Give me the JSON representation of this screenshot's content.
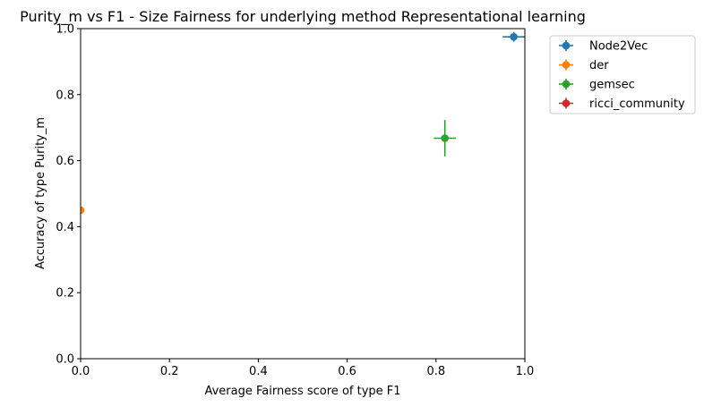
{
  "chart_data": {
    "type": "scatter",
    "title": "Purity_m vs F1 - Size Fairness for underlying method Representational learning",
    "xlabel": "Average Fairness score of type F1",
    "ylabel": "Accuracy of type Purity_m",
    "xlim": [
      0,
      1
    ],
    "ylim": [
      0,
      1
    ],
    "xticks": [
      "0.0",
      "0.2",
      "0.4",
      "0.6",
      "0.8",
      "1.0"
    ],
    "yticks": [
      "0.0",
      "0.2",
      "0.4",
      "0.6",
      "0.8",
      "1.0"
    ],
    "grid": false,
    "legend_position": "outside-top-right",
    "series": [
      {
        "name": "Node2Vec",
        "color": "#1f77b4",
        "x": 0.975,
        "y": 0.975,
        "xerr": 0.025,
        "yerr": 0.015
      },
      {
        "name": "der",
        "color": "#ff7f0e",
        "x": 0.0,
        "y": 0.45,
        "xerr": 0.0,
        "yerr": 0.0
      },
      {
        "name": "gemsec",
        "color": "#2ca02c",
        "x": 0.82,
        "y": 0.668,
        "xerr": 0.025,
        "yerr": 0.055
      },
      {
        "name": "ricci_community",
        "color": "#d62728",
        "x": null,
        "y": null,
        "xerr": 0,
        "yerr": 0
      }
    ]
  }
}
